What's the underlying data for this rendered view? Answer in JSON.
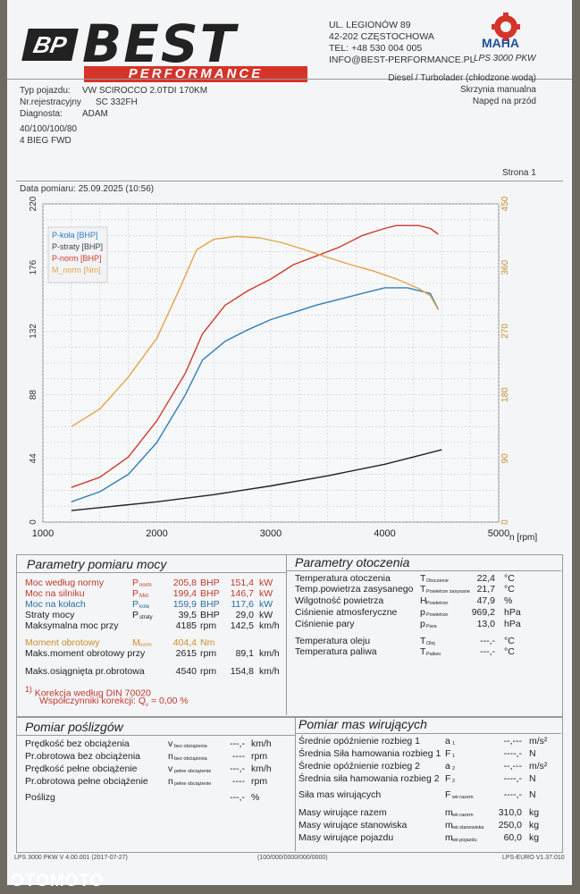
{
  "header": {
    "logo_bp": "BP",
    "logo_main": "BEST",
    "logo_sub": "PERFORMANCE",
    "address_lines": [
      "UL. LEGIONÓW 89",
      "42-202 CZĘSTOCHOWA",
      "TEL: +48 530 004 005",
      "INFO@BEST-PERFORMANCE.PL"
    ],
    "maha_label": "MAHA",
    "device": "LPS 3000 PKW"
  },
  "vehicle": {
    "typ_label": "Typ pojazdu:",
    "typ_value": "VW SCIROCCO 2.0TDI 170KM",
    "nr_label": "Nr.rejestracyjny",
    "nr_value": "SC 332FH",
    "diag_label": "Diagnosta:",
    "diag_value": "ADAM",
    "right_lines": [
      "Diesel / Turbolader (chłodzone wodą)",
      "Skrzynia manualna",
      "Napęd na przód"
    ],
    "notes": [
      "40/100/100/80",
      "4 BIEG FWD"
    ]
  },
  "page_label": "Strona 1",
  "date_label": "Data pomiaru: 25.09.2025 (10:56)",
  "chart_data": {
    "type": "line",
    "x_label": "n [rpm]",
    "x_ticks": [
      1000,
      2000,
      3000,
      4000,
      5000
    ],
    "y_left_ticks": [
      0,
      44,
      88,
      132,
      176,
      220
    ],
    "y_right_ticks": [
      0,
      90,
      180,
      270,
      360,
      450
    ],
    "xlim": [
      1000,
      5000
    ],
    "ylim_left": [
      0,
      220
    ],
    "ylim_right": [
      0,
      450
    ],
    "legend": [
      "P-koła [BHP]",
      "P-straty [BHP]",
      "P-norm [BHP]",
      "M_norm [Nm]"
    ],
    "colors": {
      "p_kola": "#2f7fb8",
      "p_straty": "#222222",
      "p_norm": "#cf3c2a",
      "m_norm": "#e3a54a",
      "grid": "#c9ccd3"
    },
    "series": [
      {
        "name": "P-koła [BHP]",
        "axis": "left",
        "x": [
          1250,
          1500,
          1750,
          2000,
          2250,
          2400,
          2600,
          2800,
          3000,
          3200,
          3400,
          3600,
          3800,
          4000,
          4200,
          4400,
          4470
        ],
        "y": [
          14,
          21,
          33,
          55,
          88,
          112,
          125,
          133,
          140,
          145,
          150,
          154,
          158,
          162,
          162,
          158,
          147
        ]
      },
      {
        "name": "P-straty [BHP]",
        "axis": "left",
        "x": [
          1250,
          1500,
          2000,
          2500,
          3000,
          3500,
          4000,
          4500
        ],
        "y": [
          8,
          10,
          14,
          19,
          25,
          32,
          40,
          50
        ]
      },
      {
        "name": "P-norm [BHP]",
        "axis": "left",
        "x": [
          1250,
          1500,
          1750,
          2000,
          2250,
          2400,
          2600,
          2800,
          3000,
          3200,
          3400,
          3600,
          3800,
          4000,
          4100,
          4200,
          4300,
          4400,
          4470
        ],
        "y": [
          24,
          31,
          45,
          70,
          103,
          130,
          150,
          160,
          168,
          178,
          184,
          190,
          198,
          203,
          205,
          205,
          205,
          203,
          199
        ]
      },
      {
        "name": "M_norm [Nm]",
        "axis": "right",
        "x": [
          1250,
          1500,
          1750,
          2000,
          2200,
          2350,
          2500,
          2700,
          2900,
          3100,
          3300,
          3500,
          3700,
          3900,
          4100,
          4300,
          4400,
          4470
        ],
        "y": [
          135,
          160,
          205,
          260,
          330,
          385,
          400,
          404,
          402,
          395,
          385,
          374,
          364,
          355,
          344,
          330,
          320,
          300
        ]
      }
    ]
  },
  "params": {
    "title": "Parametry pomiaru mocy",
    "rows": [
      {
        "label": "Moc według normy",
        "sup": "1)",
        "sym": "P",
        "sub": "norm",
        "v1": "205,8",
        "u1": "BHP",
        "v2": "151,4",
        "u2": "kW",
        "color": "red"
      },
      {
        "label": "Moc na silniku",
        "sup": "",
        "sym": "P",
        "sub": "Mot",
        "v1": "199,4",
        "u1": "BHP",
        "v2": "146,7",
        "u2": "kW",
        "color": "red"
      },
      {
        "label": "Moc na kołach",
        "sup": "",
        "sym": "P",
        "sub": "koła",
        "v1": "159,9",
        "u1": "BHP",
        "v2": "117,6",
        "u2": "kW",
        "color": "blue"
      },
      {
        "label": "Straty mocy",
        "sup": "",
        "sym": "P",
        "sub": "straty",
        "v1": "39,5",
        "u1": "BHP",
        "v2": "29,0",
        "u2": "kW",
        "color": ""
      },
      {
        "label": "Maksymalna moc przy",
        "sup": "",
        "sym": "",
        "sub": "",
        "v1": "4185",
        "u1": "rpm",
        "v2": "142,5",
        "u2": "km/h",
        "color": ""
      },
      {
        "label": "Moment obrotowy",
        "sup": "1)",
        "sym": "M",
        "sub": "norm",
        "v1": "404,4",
        "u1": "Nm",
        "v2": "",
        "u2": "",
        "color": "orange"
      },
      {
        "label": "Maks.moment obrotowy przy",
        "sup": "",
        "sym": "",
        "sub": "",
        "v1": "2615",
        "u1": "rpm",
        "v2": "89,1",
        "u2": "km/h",
        "color": ""
      },
      {
        "label": "Maks.osiągnięta pr.obrotowa",
        "sup": "",
        "sym": "",
        "sub": "",
        "v1": "4540",
        "u1": "rpm",
        "v2": "154,8",
        "u2": "km/h",
        "color": ""
      }
    ],
    "din_note": "Korekcja według DIN 70020",
    "din_sup": "1)",
    "coeff_label": "Współczynniki korekcji: Q",
    "coeff_sub": "v",
    "coeff_value": "= 0,00 %"
  },
  "env": {
    "title": "Parametry otoczenia",
    "rows": [
      {
        "label": "Temperatura otoczenia",
        "sym": "T",
        "sub": "Otoczenie",
        "val": "22,4",
        "unit": "°C"
      },
      {
        "label": "Temp.powietrza zasysanego",
        "sym": "T",
        "sub": "Powietrze zasysane",
        "val": "21,7",
        "unit": "°C"
      },
      {
        "label": "Wilgotność powietrza",
        "sym": "H",
        "sub": "Powietrze",
        "val": "47,9",
        "unit": "%"
      },
      {
        "label": "Ciśnienie atmosferyczne",
        "sym": "p",
        "sub": "Powietrze",
        "val": "969,2",
        "unit": "hPa"
      },
      {
        "label": "Ciśnienie pary",
        "sym": "p",
        "sub": "Para",
        "val": "13,0",
        "unit": "hPa"
      },
      {
        "label": "Temperatura oleju",
        "sym": "T",
        "sub": "Olej",
        "val": "---,-",
        "unit": "°C"
      },
      {
        "label": "Temperatura paliwa",
        "sym": "T",
        "sub": "Paliwo",
        "val": "---,-",
        "unit": "°C"
      }
    ]
  },
  "slip": {
    "title": "Pomiar poślizgów",
    "rows": [
      {
        "label": "Prędkość bez obciążenia",
        "sym": "v",
        "sub": "bez obciążenia",
        "val": "---,-",
        "unit": "km/h"
      },
      {
        "label": "Pr.obrotowa bez obciążenia",
        "sym": "n",
        "sub": "bez obciążenia",
        "val": "----",
        "unit": "rpm"
      },
      {
        "label": "Prędkość pełne obciążenie",
        "sym": "v",
        "sub": "pełne obciążenie",
        "val": "---,-",
        "unit": "km/h"
      },
      {
        "label": "Pr.obrotowa pełne obciążenie",
        "sym": "n",
        "sub": "pełne obciążenie",
        "val": "----",
        "unit": "rpm"
      },
      {
        "label": "Poślizg",
        "sym": "",
        "sub": "",
        "val": "---,-",
        "unit": "%"
      }
    ]
  },
  "masses": {
    "title": "Pomiar mas wirujących",
    "rows": [
      {
        "label": "Średnie opóźnienie rozbieg 1",
        "sym": "a",
        "sub": "1",
        "val": "--,---",
        "unit": "m/s²"
      },
      {
        "label": "Średnia Siła hamowania rozbieg 1",
        "sym": "F",
        "sub": "1",
        "val": "----,-",
        "unit": "N"
      },
      {
        "label": "Średnie opóźnienie rozbieg 2",
        "sym": "a",
        "sub": "2",
        "val": "--,---",
        "unit": "m/s²"
      },
      {
        "label": "Średnia siła hamowania rozbieg 2",
        "sym": "F",
        "sub": "2",
        "val": "----,-",
        "unit": "N"
      },
      {
        "label": "Siła mas wirujących",
        "sym": "F",
        "sub": "wir.razem",
        "val": "----,-",
        "unit": "N"
      },
      {
        "label": "Masy wirujące razem",
        "sym": "m",
        "sub": "wir.razem",
        "val": "310,0",
        "unit": "kg"
      },
      {
        "label": "Masy wirujące stanowiska",
        "sym": "m",
        "sub": "wir.stanowiska",
        "val": "250,0",
        "unit": "kg"
      },
      {
        "label": "Masy wirujące pojazdu",
        "sym": "m",
        "sub": "wir.pojazdu",
        "val": "60,0",
        "unit": "kg"
      }
    ]
  },
  "footer": {
    "left": "LPS 3000 PKW V 4.00.001 (2017-07-27)",
    "center": "(100/000/0000/000/0000)",
    "right": "LPS-EURO V1.37.010"
  },
  "watermark": "OTOMOTO"
}
